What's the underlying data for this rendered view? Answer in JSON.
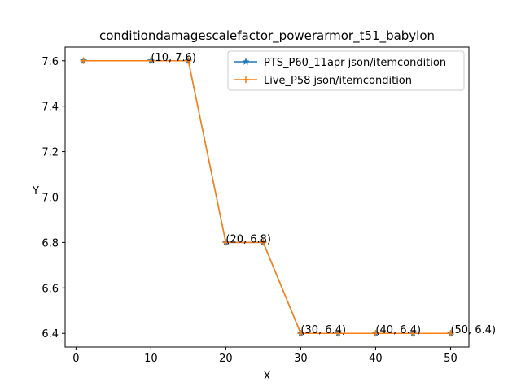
{
  "chart_data": {
    "type": "line",
    "title": "conditiondamagescalefactor_powerarmor_t51_babylon",
    "xlabel": "X",
    "ylabel": "Y",
    "xlim": [
      -1.45,
      52.45
    ],
    "ylim": [
      6.34,
      7.66
    ],
    "xticks": [
      0,
      10,
      20,
      30,
      40,
      50
    ],
    "yticks": [
      6.4,
      6.6,
      6.8,
      7.0,
      7.2,
      7.4,
      7.6
    ],
    "xtick_labels": [
      "0",
      "10",
      "20",
      "30",
      "40",
      "50"
    ],
    "ytick_labels": [
      "6.4",
      "6.6",
      "6.8",
      "7.0",
      "7.2",
      "7.4",
      "7.6"
    ],
    "grid": false,
    "legend_position": "upper right",
    "series": [
      {
        "name": "PTS_P60_11apr json/itemcondition",
        "color": "#1f77b4",
        "marker": "star",
        "x": [
          1,
          10,
          15,
          20,
          25,
          30,
          35,
          40,
          45,
          50
        ],
        "y": [
          7.6,
          7.6,
          7.6,
          6.8,
          6.8,
          6.4,
          6.4,
          6.4,
          6.4,
          6.4
        ]
      },
      {
        "name": "Live_P58 json/itemcondition",
        "color": "#ff7f0e",
        "marker": "plus",
        "x": [
          1,
          10,
          15,
          20,
          25,
          30,
          35,
          40,
          45,
          50
        ],
        "y": [
          7.6,
          7.6,
          7.6,
          6.8,
          6.8,
          6.4,
          6.4,
          6.4,
          6.4,
          6.4
        ]
      }
    ],
    "annotations": [
      {
        "text": "(10, 7.6)",
        "x": 10,
        "y": 7.6
      },
      {
        "text": "(20, 6.8)",
        "x": 20,
        "y": 6.8
      },
      {
        "text": "(30, 6.4)",
        "x": 30,
        "y": 6.4
      },
      {
        "text": "(40, 6.4)",
        "x": 40,
        "y": 6.4
      },
      {
        "text": "(50, 6.4)",
        "x": 50,
        "y": 6.4
      }
    ]
  }
}
